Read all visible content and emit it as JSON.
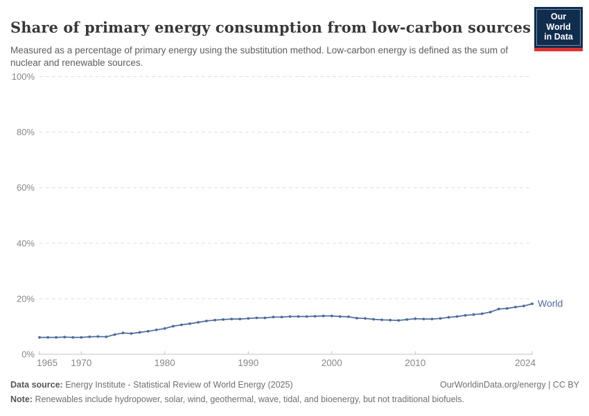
{
  "header": {
    "title": "Share of primary energy consumption from low-carbon sources",
    "subtitle": "Measured as a percentage of primary energy using the substitution method. Low-carbon energy is defined as the sum of nuclear and renewable sources.",
    "logo": {
      "line1": "Our World",
      "line2": "in Data",
      "bg_color": "#102d4e",
      "accent_color": "#dc3431"
    }
  },
  "chart_data": {
    "type": "line",
    "title": "Share of primary energy consumption from low-carbon sources",
    "xlabel": "",
    "ylabel": "",
    "grid": "horizontal-dashed",
    "legend_position": "end-of-line-label",
    "xlim": [
      1965,
      2024
    ],
    "ylim": [
      0,
      100
    ],
    "x_ticks": [
      {
        "value": 1965,
        "label": "1965"
      },
      {
        "value": 1970,
        "label": "1970"
      },
      {
        "value": 1980,
        "label": "1980"
      },
      {
        "value": 1990,
        "label": "1990"
      },
      {
        "value": 2000,
        "label": "2000"
      },
      {
        "value": 2010,
        "label": "2010"
      },
      {
        "value": 2024,
        "label": "2024"
      }
    ],
    "y_ticks": [
      {
        "value": 0,
        "label": "0%"
      },
      {
        "value": 20,
        "label": "20%"
      },
      {
        "value": 40,
        "label": "40%"
      },
      {
        "value": 60,
        "label": "60%"
      },
      {
        "value": 80,
        "label": "80%"
      },
      {
        "value": 100,
        "label": "100%"
      }
    ],
    "series": [
      {
        "name": "World",
        "color": "#4c6a9c",
        "x": [
          1965,
          1966,
          1967,
          1968,
          1969,
          1970,
          1971,
          1972,
          1973,
          1974,
          1975,
          1976,
          1977,
          1978,
          1979,
          1980,
          1981,
          1982,
          1983,
          1984,
          1985,
          1986,
          1987,
          1988,
          1989,
          1990,
          1991,
          1992,
          1993,
          1994,
          1995,
          1996,
          1997,
          1998,
          1999,
          2000,
          2001,
          2002,
          2003,
          2004,
          2005,
          2006,
          2007,
          2008,
          2009,
          2010,
          2011,
          2012,
          2013,
          2014,
          2015,
          2016,
          2017,
          2018,
          2019,
          2020,
          2021,
          2022,
          2023,
          2024
        ],
        "values": [
          6.1,
          6.1,
          6.1,
          6.2,
          6.1,
          6.1,
          6.3,
          6.4,
          6.3,
          7.1,
          7.7,
          7.5,
          7.9,
          8.3,
          8.8,
          9.3,
          10.1,
          10.6,
          11.0,
          11.5,
          12.0,
          12.3,
          12.5,
          12.7,
          12.7,
          12.9,
          13.1,
          13.1,
          13.4,
          13.4,
          13.6,
          13.6,
          13.6,
          13.7,
          13.8,
          13.8,
          13.6,
          13.5,
          13.0,
          12.9,
          12.6,
          12.4,
          12.3,
          12.2,
          12.5,
          12.8,
          12.7,
          12.7,
          12.9,
          13.3,
          13.6,
          14.0,
          14.3,
          14.6,
          15.2,
          16.3,
          16.5,
          17.0,
          17.4,
          18.2
        ]
      }
    ]
  },
  "footer": {
    "source_label": "Data source:",
    "source_text": "Energy Institute - Statistical Review of World Energy (2025)",
    "credit": "OurWorldinData.org/energy | CC BY",
    "note_label": "Note:",
    "note_text": "Renewables include hydropower, solar, wind, geothermal, wave, tidal, and bioenergy, but not traditional biofuels."
  }
}
